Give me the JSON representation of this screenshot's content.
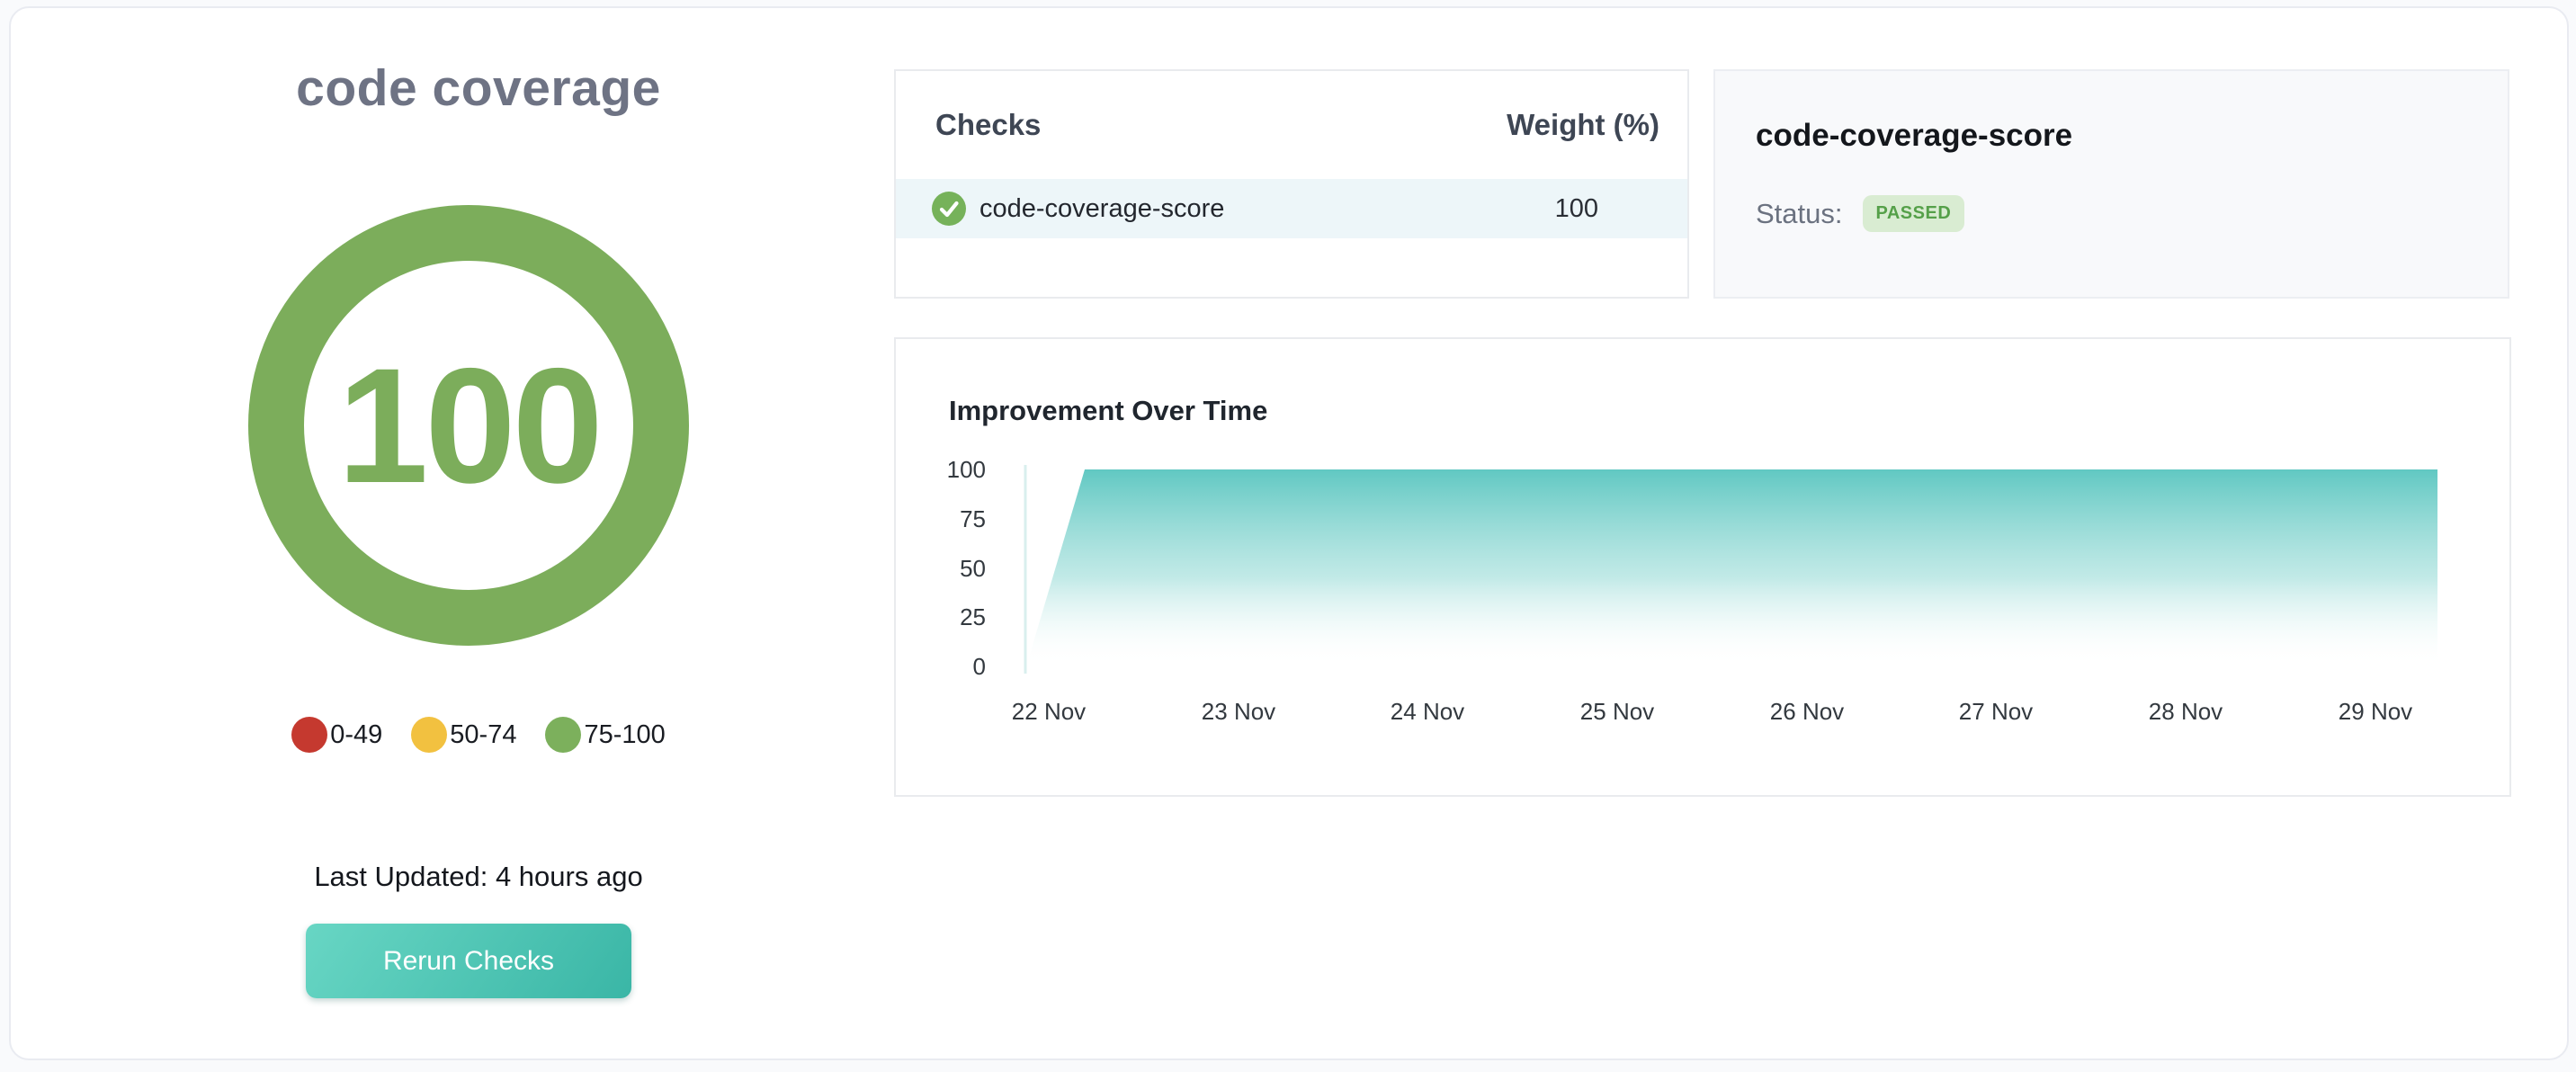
{
  "app": {
    "title": "code coverage"
  },
  "colors": {
    "score_green": "#7cad5b",
    "legend_red": "#c5392f",
    "legend_yellow": "#f2c140",
    "legend_green": "#7cb05c",
    "button_teal_from": "#68d6c4",
    "button_teal_to": "#3ab6a6",
    "area_teal": "#58c5bf",
    "row_highlight": "#edf6f9",
    "badge_bg": "#d9ecd2",
    "badge_text": "#55a049"
  },
  "gauge": {
    "score": "100",
    "legend": [
      {
        "label": "0-49",
        "color": "#c5392f"
      },
      {
        "label": "50-74",
        "color": "#f2c140"
      },
      {
        "label": "75-100",
        "color": "#7cb05c"
      }
    ]
  },
  "footer": {
    "last_updated": "Last Updated: 4 hours ago",
    "rerun_button": "Rerun Checks"
  },
  "checks_table": {
    "headers": [
      "Checks",
      "Weight (%)"
    ],
    "rows": [
      {
        "icon": "check-circle-icon",
        "name": "code-coverage-score",
        "weight": "100"
      }
    ]
  },
  "status_panel": {
    "title": "code-coverage-score",
    "label": "Status:",
    "badge": "PASSED"
  },
  "chart_data": {
    "type": "area",
    "title": "Improvement Over Time",
    "x_tick_labels": [
      "22 Nov",
      "23 Nov",
      "24 Nov",
      "25 Nov",
      "26 Nov",
      "27 Nov",
      "28 Nov",
      "29 Nov"
    ],
    "y_ticks": [
      100,
      75,
      50,
      25,
      0
    ],
    "ylim": [
      0,
      100
    ],
    "x_unit": "days_after_22_nov",
    "series": [
      {
        "name": "code-coverage-score",
        "points": [
          {
            "d": -0.12,
            "value": 0
          },
          {
            "d": 0.19,
            "value": 100
          },
          {
            "d": 7.33,
            "value": 100
          }
        ]
      }
    ],
    "grid": false,
    "legend_position": "none"
  }
}
